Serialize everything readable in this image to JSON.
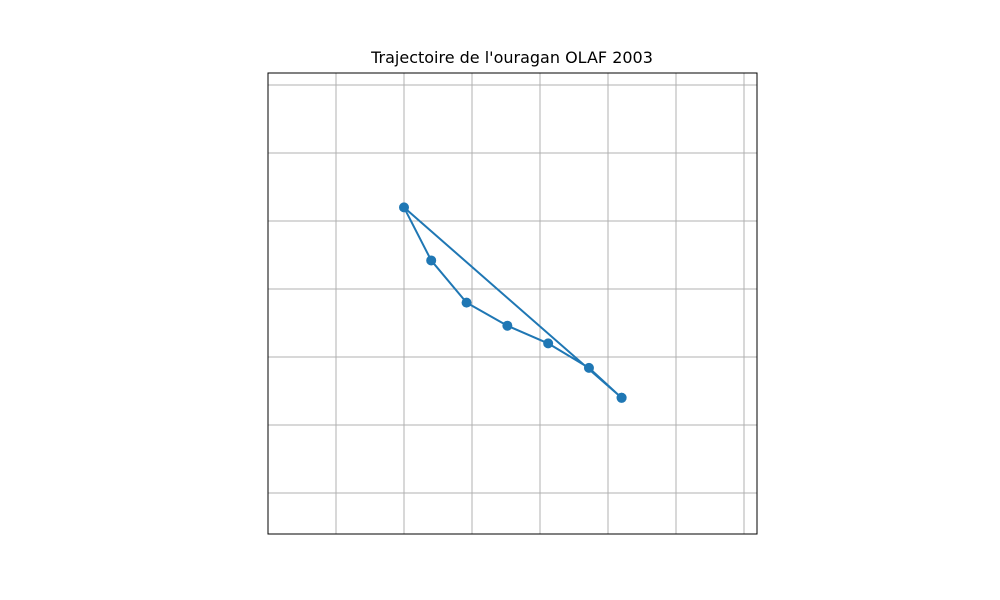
{
  "chart_data": {
    "type": "line",
    "title": "Trajectoire de l'ouragan OLAF 2003",
    "xlabel": "",
    "ylabel": "",
    "grid": true,
    "xlim": [
      0,
      36
    ],
    "ylim": [
      0,
      34
    ],
    "series": [
      {
        "x": [
          26,
          23.6,
          20.6,
          17.6,
          14.6,
          12,
          10,
          26
        ],
        "y": [
          10,
          12.2,
          14,
          15.3,
          17,
          20.1,
          24,
          10
        ],
        "color": "#1f77b4",
        "marker": "circle"
      }
    ]
  }
}
